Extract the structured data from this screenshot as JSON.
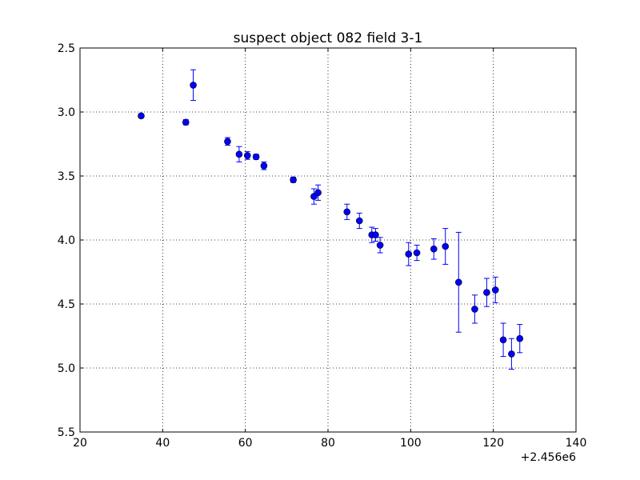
{
  "chart_data": {
    "type": "scatter",
    "title": "suspect object 082 field 3-1",
    "xlabel": "",
    "ylabel": "",
    "x_offset_label": "+2.456e6",
    "xlim": [
      20,
      140
    ],
    "ylim": [
      2.5,
      5.5
    ],
    "y_inverted": true,
    "grid": true,
    "x_ticks": [
      20,
      40,
      60,
      80,
      100,
      120,
      140
    ],
    "x_tick_labels": [
      "20",
      "40",
      "60",
      "80",
      "100",
      "120",
      "140"
    ],
    "y_ticks": [
      2.5,
      3.0,
      3.5,
      4.0,
      4.5,
      5.0,
      5.5
    ],
    "y_tick_labels": [
      "2.5",
      "3.0",
      "3.5",
      "4.0",
      "4.5",
      "5.0",
      "5.5"
    ],
    "marker_color": "#0000ff",
    "marker_edge_color": "#000000",
    "series": [
      {
        "points": [
          {
            "x": 34.8,
            "y": 3.03,
            "err": 0.01
          },
          {
            "x": 45.6,
            "y": 3.08,
            "err": 0.02
          },
          {
            "x": 47.4,
            "y": 2.79,
            "err": 0.12
          },
          {
            "x": 55.7,
            "y": 3.23,
            "err": 0.03
          },
          {
            "x": 58.5,
            "y": 3.33,
            "err": 0.06
          },
          {
            "x": 60.5,
            "y": 3.34,
            "err": 0.03
          },
          {
            "x": 62.6,
            "y": 3.35,
            "err": 0.02
          },
          {
            "x": 64.5,
            "y": 3.42,
            "err": 0.03
          },
          {
            "x": 71.6,
            "y": 3.53,
            "err": 0.02
          },
          {
            "x": 76.6,
            "y": 3.66,
            "err": 0.06
          },
          {
            "x": 77.6,
            "y": 3.63,
            "err": 0.06
          },
          {
            "x": 84.6,
            "y": 3.78,
            "err": 0.06
          },
          {
            "x": 87.6,
            "y": 3.85,
            "err": 0.06
          },
          {
            "x": 90.6,
            "y": 3.96,
            "err": 0.06
          },
          {
            "x": 91.5,
            "y": 3.96,
            "err": 0.05
          },
          {
            "x": 92.6,
            "y": 4.04,
            "err": 0.06
          },
          {
            "x": 99.5,
            "y": 4.11,
            "err": 0.09
          },
          {
            "x": 101.5,
            "y": 4.1,
            "err": 0.06
          },
          {
            "x": 105.6,
            "y": 4.07,
            "err": 0.08
          },
          {
            "x": 108.4,
            "y": 4.05,
            "err": 0.14
          },
          {
            "x": 111.6,
            "y": 4.33,
            "err": 0.39
          },
          {
            "x": 115.5,
            "y": 4.54,
            "err": 0.11
          },
          {
            "x": 118.4,
            "y": 4.41,
            "err": 0.11
          },
          {
            "x": 120.5,
            "y": 4.39,
            "err": 0.1
          },
          {
            "x": 122.4,
            "y": 4.78,
            "err": 0.13
          },
          {
            "x": 124.4,
            "y": 4.89,
            "err": 0.12
          },
          {
            "x": 126.4,
            "y": 4.77,
            "err": 0.11
          }
        ]
      }
    ]
  }
}
